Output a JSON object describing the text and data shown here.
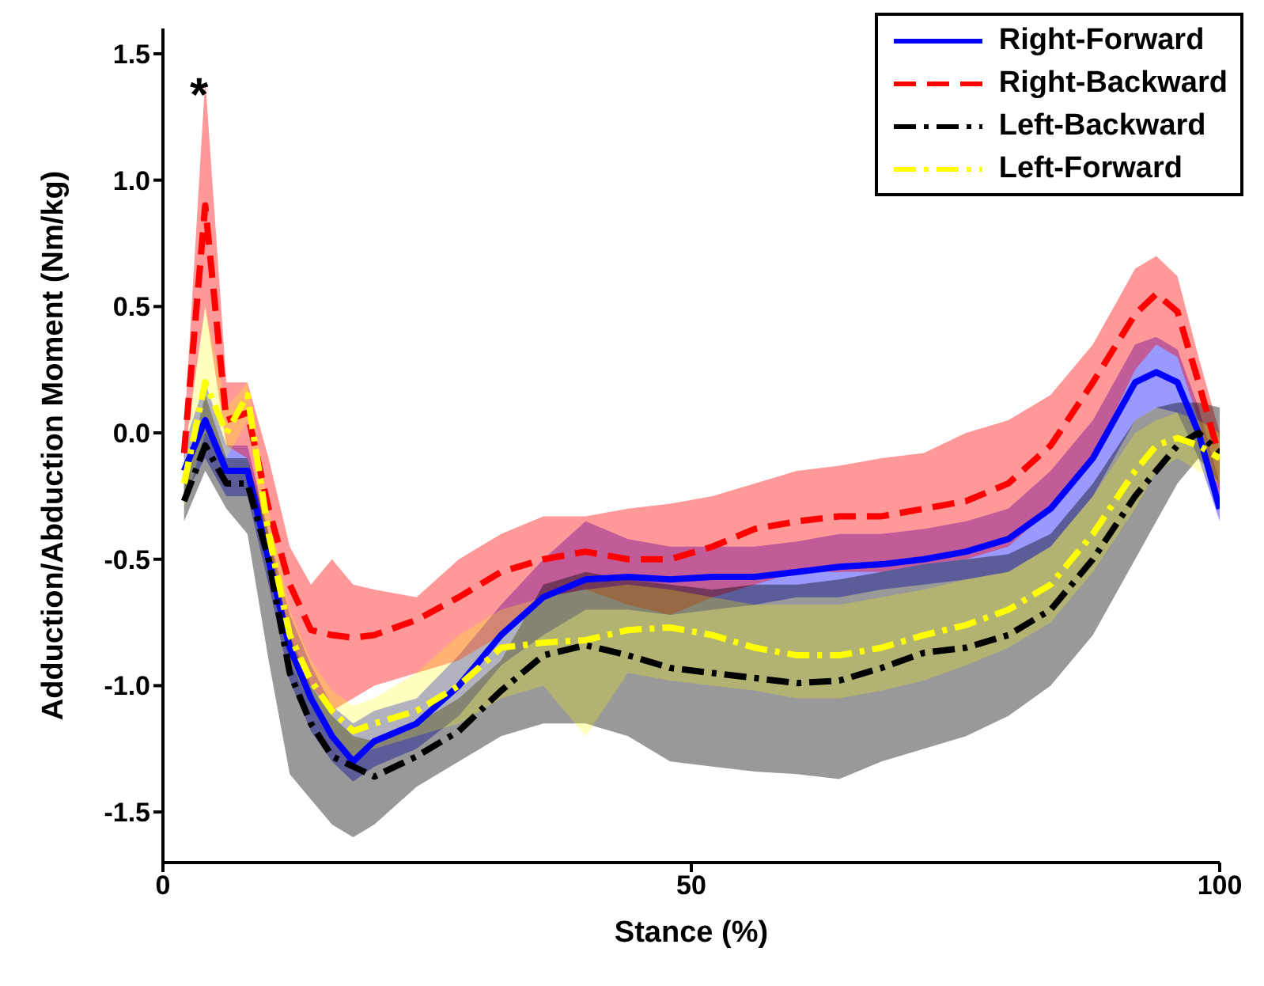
{
  "chart_data": {
    "type": "line",
    "xlabel": "Stance (%)",
    "ylabel": "Adduction/Abduction Moment (Nm/kg)",
    "x": [
      2,
      4,
      6,
      8,
      10,
      12,
      14,
      16,
      18,
      20,
      24,
      28,
      32,
      36,
      40,
      44,
      48,
      52,
      56,
      60,
      64,
      68,
      72,
      76,
      80,
      84,
      88,
      92,
      94,
      96,
      98,
      100
    ],
    "xlim": [
      0,
      100
    ],
    "xticks": [
      0,
      50,
      100
    ],
    "ylim": [
      -1.7,
      1.6
    ],
    "yticks": [
      -1.5,
      {
        "value": -1,
        "label": "-1.0"
      },
      -0.5,
      {
        "value": 0,
        "label": "0.0"
      },
      0.5,
      {
        "value": 1,
        "label": "1.0"
      },
      1.5
    ],
    "legend": "top right",
    "marker": "none",
    "annotations": [
      "*"
    ],
    "series": [
      {
        "name": "Right-Forward",
        "color": "#0000ff",
        "line_style": "solid",
        "values": [
          -0.15,
          0.05,
          -0.15,
          -0.15,
          -0.5,
          -0.85,
          -1.05,
          -1.2,
          -1.3,
          -1.22,
          -1.15,
          -1.0,
          -0.8,
          -0.65,
          -0.58,
          -0.57,
          -0.58,
          -0.57,
          -0.57,
          -0.55,
          -0.53,
          -0.52,
          -0.5,
          -0.47,
          -0.42,
          -0.3,
          -0.1,
          0.2,
          0.24,
          0.2,
          0.0,
          -0.3
        ],
        "upper": [
          -0.05,
          0.2,
          -0.05,
          -0.05,
          -0.4,
          -0.72,
          -0.92,
          -1.08,
          -1.15,
          -1.1,
          -1.05,
          -0.88,
          -0.68,
          -0.5,
          -0.35,
          -0.42,
          -0.45,
          -0.45,
          -0.45,
          -0.43,
          -0.4,
          -0.4,
          -0.38,
          -0.35,
          -0.3,
          -0.15,
          0.05,
          0.35,
          0.38,
          0.33,
          0.1,
          -0.2
        ],
        "lower": [
          -0.25,
          -0.1,
          -0.25,
          -0.25,
          -0.6,
          -0.98,
          -1.18,
          -1.3,
          -1.38,
          -1.32,
          -1.25,
          -1.12,
          -0.92,
          -0.8,
          -0.7,
          -0.7,
          -0.72,
          -0.7,
          -0.68,
          -0.65,
          -0.65,
          -0.62,
          -0.6,
          -0.58,
          -0.55,
          -0.45,
          -0.25,
          0.05,
          0.1,
          0.08,
          -0.1,
          -0.35
        ]
      },
      {
        "name": "Right-Backward",
        "color": "#ff0000",
        "line_style": "dashed",
        "values": [
          -0.08,
          0.9,
          0.05,
          0.08,
          -0.3,
          -0.6,
          -0.78,
          -0.8,
          -0.81,
          -0.8,
          -0.74,
          -0.65,
          -0.55,
          -0.5,
          -0.47,
          -0.5,
          -0.5,
          -0.45,
          -0.38,
          -0.35,
          -0.33,
          -0.33,
          -0.3,
          -0.27,
          -0.2,
          -0.05,
          0.2,
          0.47,
          0.55,
          0.48,
          0.2,
          -0.1
        ],
        "upper": [
          0.0,
          1.4,
          0.2,
          0.2,
          -0.1,
          -0.45,
          -0.6,
          -0.5,
          -0.6,
          -0.62,
          -0.65,
          -0.5,
          -0.4,
          -0.33,
          -0.33,
          -0.3,
          -0.28,
          -0.25,
          -0.2,
          -0.15,
          -0.13,
          -0.1,
          -0.08,
          0.0,
          0.05,
          0.15,
          0.35,
          0.65,
          0.7,
          0.62,
          0.3,
          0.0
        ],
        "lower": [
          -0.1,
          0.5,
          -0.05,
          -0.1,
          -0.5,
          -0.9,
          -1.0,
          -1.1,
          -1.05,
          -1.0,
          -0.95,
          -0.9,
          -0.8,
          -0.65,
          -0.62,
          -0.68,
          -0.72,
          -0.65,
          -0.6,
          -0.55,
          -0.55,
          -0.55,
          -0.52,
          -0.5,
          -0.45,
          -0.3,
          -0.1,
          0.25,
          0.35,
          0.3,
          0.05,
          -0.25
        ]
      },
      {
        "name": "Left-Backward",
        "color": "#000000",
        "line_style": "dashdot",
        "values": [
          -0.27,
          -0.05,
          -0.2,
          -0.2,
          -0.5,
          -0.95,
          -1.15,
          -1.28,
          -1.32,
          -1.36,
          -1.28,
          -1.18,
          -1.02,
          -0.88,
          -0.84,
          -0.88,
          -0.93,
          -0.95,
          -0.97,
          -0.99,
          -0.98,
          -0.93,
          -0.87,
          -0.85,
          -0.8,
          -0.7,
          -0.5,
          -0.25,
          -0.15,
          -0.05,
          0.0,
          -0.08
        ],
        "upper": [
          -0.2,
          0.15,
          -0.1,
          -0.1,
          -0.4,
          -0.8,
          -1.0,
          -1.12,
          -1.2,
          -1.22,
          -1.15,
          -1.05,
          -0.9,
          -0.6,
          -0.55,
          -0.58,
          -0.6,
          -0.62,
          -0.6,
          -0.6,
          -0.58,
          -0.55,
          -0.52,
          -0.5,
          -0.48,
          -0.4,
          -0.2,
          0.05,
          0.1,
          0.12,
          0.12,
          0.1
        ],
        "lower": [
          -0.35,
          -0.15,
          -0.3,
          -0.4,
          -0.9,
          -1.35,
          -1.45,
          -1.55,
          -1.6,
          -1.55,
          -1.4,
          -1.3,
          -1.2,
          -1.15,
          -1.15,
          -1.2,
          -1.3,
          -1.32,
          -1.34,
          -1.35,
          -1.37,
          -1.3,
          -1.25,
          -1.2,
          -1.12,
          -1.0,
          -0.8,
          -0.5,
          -0.35,
          -0.2,
          -0.1,
          -0.2
        ]
      },
      {
        "name": "Left-Forward",
        "color": "#ffff00",
        "line_style": "dashdot",
        "values": [
          -0.2,
          0.2,
          0.0,
          0.15,
          -0.4,
          -0.8,
          -0.98,
          -1.1,
          -1.18,
          -1.15,
          -1.1,
          -1.0,
          -0.85,
          -0.83,
          -0.82,
          -0.78,
          -0.77,
          -0.8,
          -0.85,
          -0.88,
          -0.88,
          -0.85,
          -0.8,
          -0.76,
          -0.7,
          -0.6,
          -0.4,
          -0.15,
          -0.05,
          -0.02,
          -0.05,
          -0.1
        ],
        "upper": [
          -0.1,
          0.5,
          0.1,
          0.2,
          -0.3,
          -0.7,
          -0.9,
          -1.02,
          -1.08,
          -1.05,
          -0.95,
          -0.8,
          -0.7,
          -0.65,
          -0.62,
          -0.6,
          -0.62,
          -0.65,
          -0.68,
          -0.68,
          -0.68,
          -0.65,
          -0.62,
          -0.58,
          -0.55,
          -0.45,
          -0.25,
          0.0,
          0.05,
          0.08,
          0.05,
          0.0
        ],
        "lower": [
          -0.3,
          0.0,
          -0.1,
          0.05,
          -0.5,
          -0.9,
          -1.08,
          -1.2,
          -1.28,
          -1.25,
          -1.2,
          -1.15,
          -1.05,
          -1.0,
          -1.2,
          -0.95,
          -0.98,
          -1.0,
          -1.02,
          -1.05,
          -1.05,
          -1.02,
          -0.98,
          -0.92,
          -0.85,
          -0.75,
          -0.55,
          -0.3,
          -0.15,
          -0.1,
          -0.15,
          -0.2
        ]
      }
    ]
  }
}
